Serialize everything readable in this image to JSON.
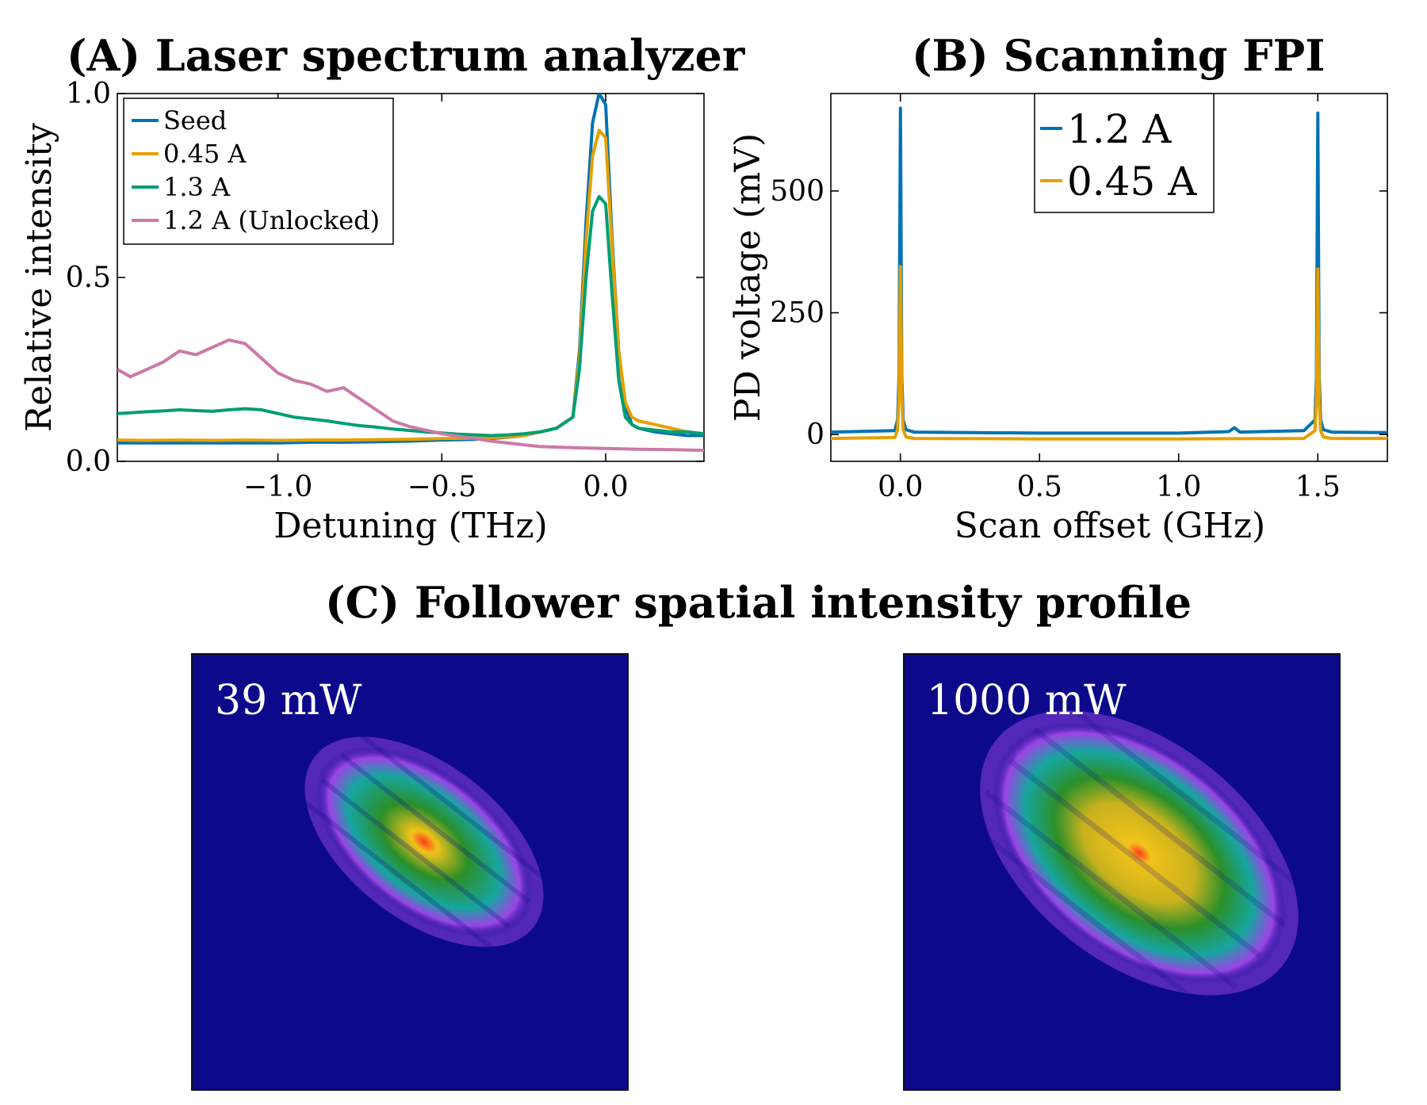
{
  "panel_a_title": "(A) Laser spectrum analyzer",
  "panel_b_title": "(B) Scanning FPI",
  "panel_c_title": "(C) Follower spatial intensity profile",
  "colors": {
    "seed": "#0072b2",
    "a045": "#e69f00",
    "a13": "#009e73",
    "unlocked": "#cc79a7",
    "image_bg": "#0c0a8a"
  },
  "chart_data": [
    {
      "id": "A",
      "type": "line",
      "title": "(A) Laser spectrum analyzer",
      "xlabel": "Detuning (THz)",
      "ylabel": "Relative intensity",
      "xlim": [
        -1.49,
        0.3
      ],
      "ylim": [
        0.0,
        1.0
      ],
      "xticks": [
        -1.0,
        -0.5,
        0.0
      ],
      "xtick_labels": [
        "−1.0",
        "−0.5",
        "0.0"
      ],
      "yticks": [
        0.0,
        0.5,
        1.0
      ],
      "ytick_labels": [
        "0.0",
        "0.5",
        "1.0"
      ],
      "legend": "top-left",
      "series": [
        {
          "name": "Seed",
          "color": "#0072b2",
          "x": [
            -1.49,
            -1.4,
            -1.3,
            -1.2,
            -1.1,
            -1.0,
            -0.9,
            -0.8,
            -0.7,
            -0.6,
            -0.5,
            -0.4,
            -0.3,
            -0.25,
            -0.2,
            -0.15,
            -0.1,
            -0.08,
            -0.06,
            -0.04,
            -0.02,
            0.0,
            0.02,
            0.04,
            0.06,
            0.08,
            0.1,
            0.15,
            0.2,
            0.25,
            0.3
          ],
          "y": [
            0.05,
            0.05,
            0.05,
            0.05,
            0.05,
            0.05,
            0.052,
            0.052,
            0.053,
            0.055,
            0.058,
            0.06,
            0.065,
            0.07,
            0.08,
            0.09,
            0.12,
            0.3,
            0.65,
            0.92,
            1.0,
            0.97,
            0.6,
            0.3,
            0.15,
            0.1,
            0.09,
            0.08,
            0.075,
            0.07,
            0.07
          ]
        },
        {
          "name": "0.45 A",
          "color": "#e69f00",
          "x": [
            -1.49,
            -1.4,
            -1.3,
            -1.2,
            -1.1,
            -1.0,
            -0.9,
            -0.8,
            -0.7,
            -0.6,
            -0.5,
            -0.4,
            -0.3,
            -0.25,
            -0.2,
            -0.15,
            -0.1,
            -0.08,
            -0.06,
            -0.04,
            -0.02,
            0.0,
            0.02,
            0.04,
            0.06,
            0.08,
            0.1,
            0.15,
            0.2,
            0.25,
            0.3
          ],
          "y": [
            0.058,
            0.057,
            0.058,
            0.057,
            0.058,
            0.057,
            0.058,
            0.058,
            0.059,
            0.06,
            0.062,
            0.063,
            0.066,
            0.07,
            0.08,
            0.09,
            0.12,
            0.28,
            0.6,
            0.83,
            0.9,
            0.88,
            0.58,
            0.3,
            0.16,
            0.12,
            0.11,
            0.1,
            0.09,
            0.08,
            0.075
          ]
        },
        {
          "name": "1.3 A",
          "color": "#009e73",
          "x": [
            -1.49,
            -1.45,
            -1.4,
            -1.35,
            -1.3,
            -1.25,
            -1.2,
            -1.15,
            -1.1,
            -1.05,
            -1.0,
            -0.95,
            -0.9,
            -0.85,
            -0.8,
            -0.75,
            -0.7,
            -0.65,
            -0.6,
            -0.55,
            -0.5,
            -0.45,
            -0.4,
            -0.35,
            -0.3,
            -0.25,
            -0.2,
            -0.15,
            -0.1,
            -0.08,
            -0.06,
            -0.04,
            -0.02,
            0.0,
            0.02,
            0.04,
            0.06,
            0.08,
            0.1,
            0.15,
            0.2,
            0.25,
            0.3
          ],
          "y": [
            0.13,
            0.132,
            0.135,
            0.137,
            0.14,
            0.138,
            0.136,
            0.14,
            0.143,
            0.14,
            0.13,
            0.12,
            0.115,
            0.11,
            0.103,
            0.097,
            0.093,
            0.088,
            0.084,
            0.08,
            0.077,
            0.074,
            0.072,
            0.07,
            0.072,
            0.075,
            0.08,
            0.09,
            0.12,
            0.25,
            0.5,
            0.68,
            0.72,
            0.7,
            0.45,
            0.22,
            0.12,
            0.1,
            0.09,
            0.085,
            0.08,
            0.08,
            0.075
          ]
        },
        {
          "name": "1.2 A (Unlocked)",
          "color": "#cc79a7",
          "x": [
            -1.49,
            -1.45,
            -1.4,
            -1.35,
            -1.3,
            -1.25,
            -1.2,
            -1.15,
            -1.1,
            -1.05,
            -1.0,
            -0.95,
            -0.9,
            -0.85,
            -0.8,
            -0.75,
            -0.7,
            -0.65,
            -0.6,
            -0.55,
            -0.5,
            -0.45,
            -0.4,
            -0.35,
            -0.3,
            -0.25,
            -0.2,
            -0.1,
            0.0,
            0.1,
            0.2,
            0.3
          ],
          "y": [
            0.25,
            0.23,
            0.25,
            0.27,
            0.3,
            0.29,
            0.31,
            0.33,
            0.32,
            0.28,
            0.24,
            0.22,
            0.21,
            0.19,
            0.2,
            0.17,
            0.14,
            0.11,
            0.095,
            0.085,
            0.075,
            0.068,
            0.062,
            0.055,
            0.05,
            0.045,
            0.04,
            0.037,
            0.035,
            0.033,
            0.032,
            0.03
          ]
        }
      ],
      "legend_labels": [
        "Seed",
        "0.45 A",
        "1.3 A",
        "1.2 A (Unlocked)"
      ]
    },
    {
      "id": "B",
      "type": "line",
      "title": "(B) Scanning FPI",
      "xlabel": "Scan offset (GHz)",
      "ylabel": "PD voltage (mV)",
      "xlim": [
        -0.25,
        1.75
      ],
      "ylim": [
        -55,
        700
      ],
      "xticks": [
        0.0,
        0.5,
        1.0,
        1.5
      ],
      "xtick_labels": [
        "0.0",
        "0.5",
        "1.0",
        "1.5"
      ],
      "yticks": [
        0,
        250,
        500
      ],
      "ytick_labels": [
        "0",
        "250",
        "500"
      ],
      "legend": "top-center",
      "series": [
        {
          "name": "1.2 A",
          "color": "#0072b2",
          "x": [
            -0.25,
            -0.02,
            -0.01,
            -0.005,
            0.0,
            0.005,
            0.01,
            0.02,
            0.05,
            0.5,
            1.0,
            1.18,
            1.2,
            1.22,
            1.45,
            1.49,
            1.495,
            1.5,
            1.505,
            1.51,
            1.52,
            1.55,
            1.75
          ],
          "y": [
            5,
            8,
            30,
            120,
            670,
            120,
            30,
            10,
            5,
            3,
            3,
            6,
            14,
            5,
            8,
            30,
            120,
            660,
            120,
            30,
            10,
            5,
            4
          ]
        },
        {
          "name": "0.45 A",
          "color": "#e69f00",
          "x": [
            -0.25,
            -0.02,
            -0.01,
            -0.005,
            0.0,
            0.005,
            0.01,
            0.02,
            0.05,
            0.5,
            1.0,
            1.45,
            1.49,
            1.495,
            1.5,
            1.505,
            1.51,
            1.52,
            1.55,
            1.75
          ],
          "y": [
            -8,
            -6,
            10,
            80,
            345,
            80,
            10,
            -5,
            -8,
            -9,
            -9,
            -8,
            8,
            70,
            340,
            70,
            8,
            -5,
            -8,
            -8
          ]
        }
      ],
      "legend_labels": [
        "1.2 A",
        "0.45 A"
      ]
    }
  ],
  "images": [
    {
      "label": "39 mW"
    },
    {
      "label": "1000 mW"
    }
  ]
}
